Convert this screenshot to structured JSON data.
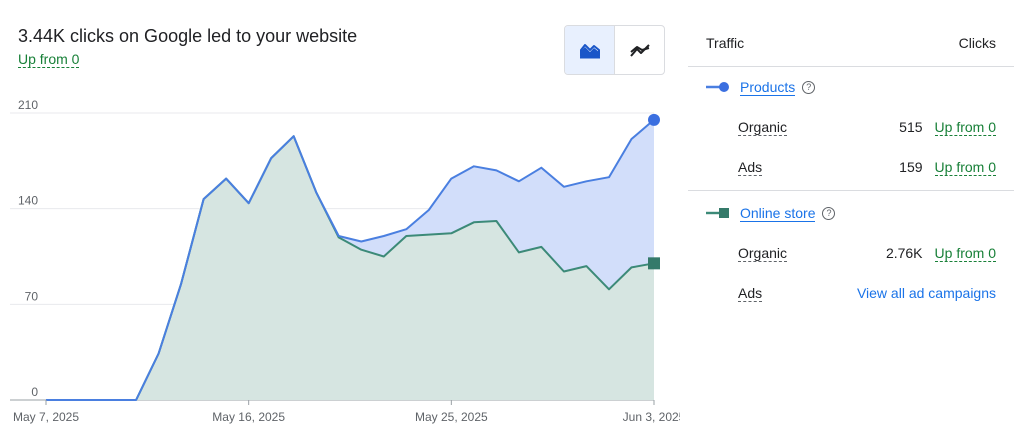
{
  "header": {
    "headline": "3.44K clicks on Google led to your website",
    "subline": "Up from 0"
  },
  "toggle": {
    "options": [
      {
        "icon": "area-chart-icon",
        "active": true
      },
      {
        "icon": "trend-line-icon",
        "active": false
      }
    ]
  },
  "colors": {
    "products": "#4a7fe0",
    "products_fill": "#d2defa",
    "online_store": "#3c8a78",
    "online_store_fill": "#d6e5e1",
    "positive": "#188038",
    "link": "#1a73e8"
  },
  "panel": {
    "col_traffic": "Traffic",
    "col_clicks": "Clicks",
    "series": [
      {
        "name": "Products",
        "help": "?",
        "rows": [
          {
            "label": "Organic",
            "value": "515",
            "delta": "Up from 0"
          },
          {
            "label": "Ads",
            "value": "159",
            "delta": "Up from 0"
          }
        ]
      },
      {
        "name": "Online store",
        "help": "?",
        "rows": [
          {
            "label": "Organic",
            "value": "2.76K",
            "delta": "Up from 0"
          },
          {
            "label": "Ads",
            "link": "View all ad campaigns"
          }
        ]
      }
    ]
  },
  "chart_data": {
    "type": "area",
    "x": [
      "May 7, 2025",
      "May 8, 2025",
      "May 9, 2025",
      "May 10, 2025",
      "May 11, 2025",
      "May 12, 2025",
      "May 13, 2025",
      "May 14, 2025",
      "May 15, 2025",
      "May 16, 2025",
      "May 17, 2025",
      "May 18, 2025",
      "May 19, 2025",
      "May 20, 2025",
      "May 21, 2025",
      "May 22, 2025",
      "May 23, 2025",
      "May 24, 2025",
      "May 25, 2025",
      "May 26, 2025",
      "May 27, 2025",
      "May 28, 2025",
      "May 29, 2025",
      "May 30, 2025",
      "May 31, 2025",
      "Jun 1, 2025",
      "Jun 2, 2025",
      "Jun 3, 2025"
    ],
    "series": [
      {
        "name": "Products",
        "values": [
          0,
          0,
          0,
          0,
          0,
          34,
          85,
          147,
          162,
          144,
          177,
          193,
          152,
          120,
          116,
          120,
          125,
          139,
          162,
          171,
          168,
          160,
          170,
          156,
          160,
          163,
          191,
          205
        ]
      },
      {
        "name": "Online store",
        "values": [
          0,
          0,
          0,
          0,
          0,
          34,
          85,
          147,
          162,
          144,
          177,
          193,
          152,
          119,
          110,
          105,
          120,
          121,
          122,
          130,
          131,
          108,
          112,
          94,
          98,
          81,
          97,
          100
        ]
      }
    ],
    "x_ticks": [
      "May 7, 2025",
      "May 16, 2025",
      "May 25, 2025",
      "Jun 3, 2025"
    ],
    "y_ticks": [
      0,
      70,
      140,
      210
    ],
    "ylim": [
      0,
      210
    ],
    "grid": true
  }
}
